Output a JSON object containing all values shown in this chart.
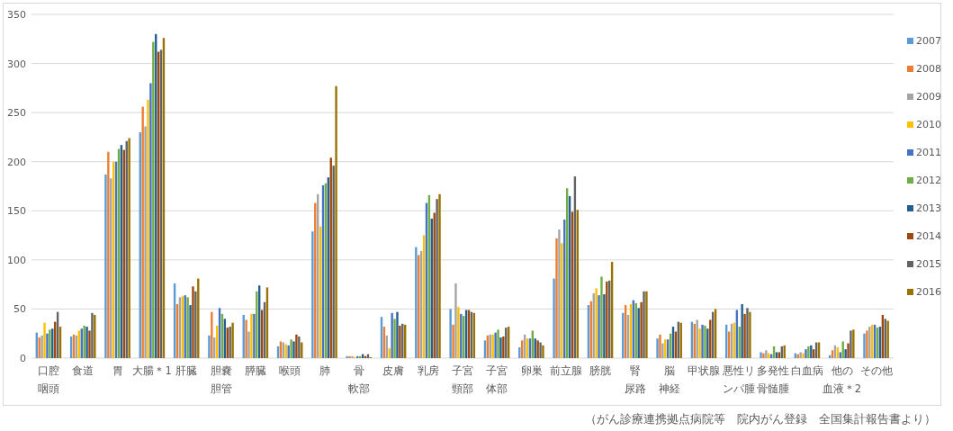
{
  "chart_data": {
    "type": "bar",
    "categories": [
      "口腔咽頭",
      "食道",
      "胃",
      "大腸＊1",
      "肝臓",
      "胆嚢胆管",
      "膵臓",
      "喉頭",
      "肺",
      "骨軟部",
      "皮膚",
      "乳房",
      "子宮頸部",
      "子宮体部",
      "卵巣",
      "前立腺",
      "膀胱",
      "腎尿路",
      "脳神経",
      "甲状腺",
      "悪性リンパ腫",
      "多発性骨髄腫",
      "白血病",
      "他の血液＊2",
      "その他"
    ],
    "series": [
      {
        "name": "2007",
        "color": "#5b9bd5",
        "values": [
          26,
          22,
          187,
          230,
          76,
          23,
          44,
          12,
          129,
          2,
          42,
          113,
          50,
          18,
          11,
          81,
          54,
          46,
          20,
          37,
          34,
          6,
          5,
          3,
          25
        ]
      },
      {
        "name": "2008",
        "color": "#ed7d31",
        "values": [
          21,
          24,
          210,
          256,
          55,
          47,
          39,
          17,
          158,
          2,
          32,
          105,
          34,
          23,
          18,
          122,
          58,
          54,
          24,
          35,
          27,
          5,
          4,
          8,
          28
        ]
      },
      {
        "name": "2009",
        "color": "#a5a5a5",
        "values": [
          23,
          23,
          183,
          236,
          62,
          21,
          27,
          16,
          167,
          2,
          23,
          109,
          76,
          24,
          24,
          131,
          66,
          44,
          15,
          39,
          35,
          8,
          6,
          13,
          32
        ]
      },
      {
        "name": "2010",
        "color": "#ffc000",
        "values": [
          36,
          28,
          200,
          263,
          63,
          33,
          45,
          14,
          134,
          1,
          10,
          125,
          52,
          24,
          20,
          117,
          71,
          55,
          19,
          30,
          36,
          5,
          5,
          11,
          34
        ]
      },
      {
        "name": "2011",
        "color": "#4472c4",
        "values": [
          25,
          30,
          200,
          280,
          64,
          51,
          45,
          13,
          176,
          2,
          46,
          158,
          45,
          26,
          20,
          141,
          64,
          59,
          19,
          34,
          49,
          4,
          9,
          6,
          34
        ]
      },
      {
        "name": "2012",
        "color": "#70ad47",
        "values": [
          29,
          33,
          213,
          322,
          62,
          45,
          68,
          19,
          178,
          2,
          40,
          166,
          43,
          29,
          28,
          173,
          83,
          56,
          25,
          33,
          32,
          12,
          12,
          17,
          31
        ]
      },
      {
        "name": "2013",
        "color": "#255e91",
        "values": [
          30,
          32,
          217,
          330,
          54,
          40,
          74,
          17,
          184,
          4,
          47,
          142,
          49,
          21,
          20,
          165,
          65,
          51,
          32,
          30,
          55,
          6,
          13,
          9,
          32
        ]
      },
      {
        "name": "2014",
        "color": "#9e480e",
        "values": [
          37,
          28,
          212,
          312,
          73,
          31,
          49,
          24,
          204,
          2,
          33,
          148,
          49,
          22,
          18,
          149,
          78,
          57,
          27,
          39,
          45,
          6,
          9,
          15,
          44
        ]
      },
      {
        "name": "2015",
        "color": "#636363",
        "values": [
          47,
          46,
          221,
          314,
          68,
          32,
          57,
          22,
          196,
          4,
          35,
          162,
          47,
          31,
          16,
          185,
          79,
          68,
          37,
          47,
          51,
          12,
          16,
          28,
          40
        ]
      },
      {
        "name": "2016",
        "color": "#997300",
        "values": [
          32,
          44,
          224,
          326,
          81,
          36,
          72,
          16,
          277,
          1,
          34,
          167,
          46,
          32,
          13,
          151,
          98,
          68,
          36,
          50,
          47,
          13,
          16,
          29,
          38
        ]
      }
    ],
    "ylim": [
      0,
      350
    ],
    "yticks": [
      0,
      50,
      100,
      150,
      200,
      250,
      300,
      350
    ],
    "grid": "y",
    "legend": "right",
    "annotations": [
      "（がん診療連携拠点病院等　院内がん登録　全国集計報告書より）"
    ]
  }
}
